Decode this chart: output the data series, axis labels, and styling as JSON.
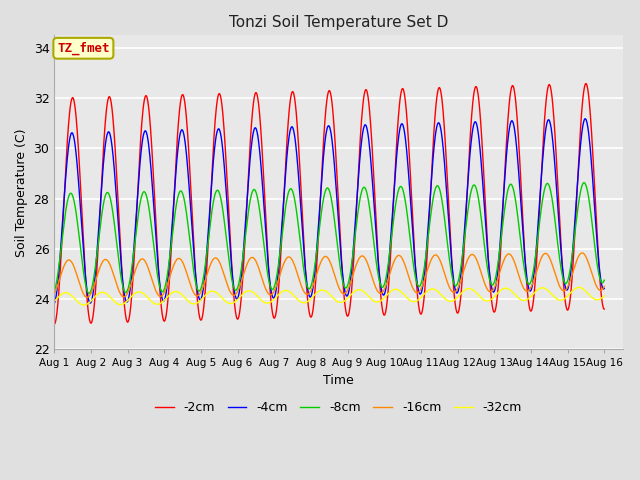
{
  "title": "Tonzi Soil Temperature Set D",
  "xlabel": "Time",
  "ylabel": "Soil Temperature (C)",
  "annotation_text": "TZ_fmet",
  "annotation_color": "#cc0000",
  "annotation_bg": "#ffffcc",
  "annotation_border": "#aaaa00",
  "ylim": [
    22,
    34.5
  ],
  "xlim_days": 15.5,
  "series": [
    {
      "label": "-2cm",
      "color": "#ff0000",
      "amplitude": 4.5,
      "mean": 27.5,
      "phase": 0.0,
      "trend": 0.04
    },
    {
      "label": "-4cm",
      "color": "#0000ff",
      "amplitude": 3.4,
      "mean": 27.2,
      "phase": 0.12,
      "trend": 0.04
    },
    {
      "label": "-8cm",
      "color": "#00cc00",
      "amplitude": 2.0,
      "mean": 26.2,
      "phase": 0.32,
      "trend": 0.03
    },
    {
      "label": "-16cm",
      "color": "#ff8800",
      "amplitude": 0.75,
      "mean": 24.8,
      "phase": 0.65,
      "trend": 0.02
    },
    {
      "label": "-32cm",
      "color": "#ffff00",
      "amplitude": 0.25,
      "mean": 24.0,
      "phase": 1.2,
      "trend": 0.015
    }
  ],
  "tick_labels": [
    "Aug 1",
    "Aug 2",
    "Aug 3",
    "Aug 4",
    "Aug 5",
    "Aug 6",
    "Aug 7",
    "Aug 8",
    "Aug 9",
    "Aug 10",
    "Aug 11",
    "Aug 12",
    "Aug 13",
    "Aug 14",
    "Aug 15",
    "Aug 16"
  ],
  "yticks": [
    22,
    24,
    26,
    28,
    30,
    32,
    34
  ],
  "legend_ncol": 5,
  "background_color": "#e0e0e0",
  "plot_bg": "#e8e8e8",
  "grid_color": "#ffffff",
  "figsize": [
    6.4,
    4.8
  ],
  "dpi": 100
}
